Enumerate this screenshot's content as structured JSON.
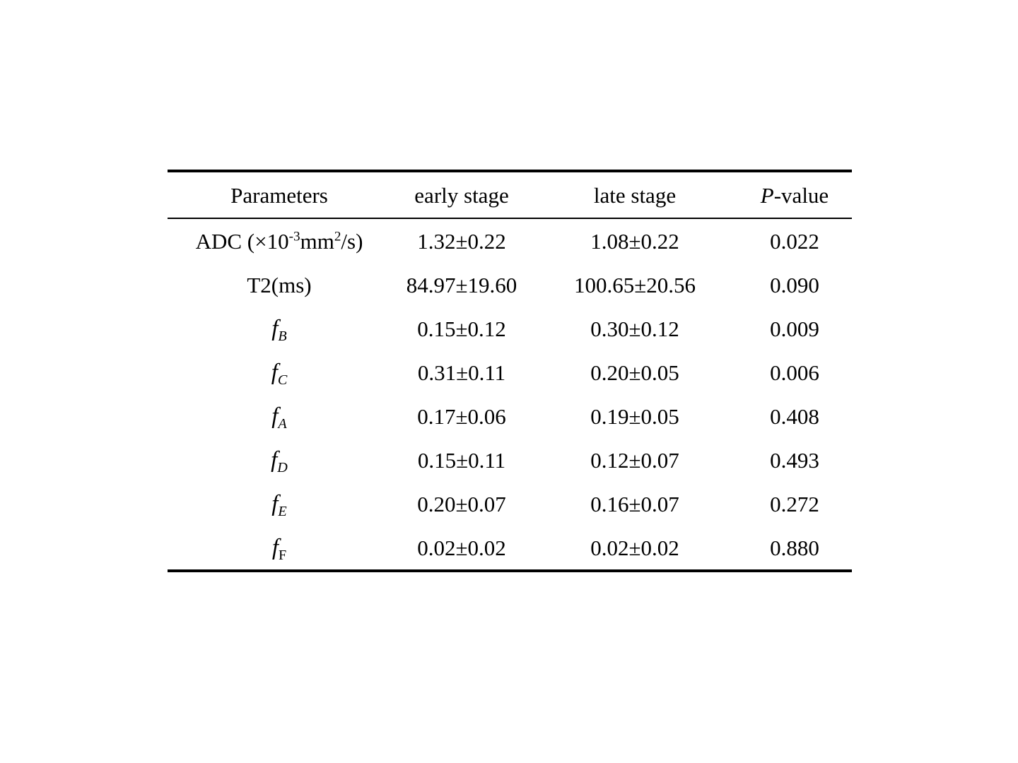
{
  "page": {
    "background": "#ffffff",
    "text_color": "#000000"
  },
  "table": {
    "headers": {
      "parameters": "Parameters",
      "early": "early stage",
      "late": "late stage",
      "p_italic": "P",
      "p_rest": "-value"
    },
    "rows": [
      {
        "param_pre": "ADC (×10",
        "param_sup1": "-3",
        "param_mid": "mm",
        "param_sup2": "2",
        "param_post": "/s)",
        "early": "1.32±0.22",
        "late": "1.08±0.22",
        "p": "0.022"
      },
      {
        "param": "T2(ms)",
        "early": "84.97±19.60",
        "late": "100.65±20.56",
        "p": "0.090"
      },
      {
        "param_base": "f",
        "param_sub": "B",
        "early": "0.15±0.12",
        "late": "0.30±0.12",
        "p": "0.009"
      },
      {
        "param_base": "f",
        "param_sub": "C",
        "early": "0.31±0.11",
        "late": "0.20±0.05",
        "p": "0.006"
      },
      {
        "param_base": "f",
        "param_sub": "A",
        "early": "0.17±0.06",
        "late": "0.19±0.05",
        "p": "0.408"
      },
      {
        "param_base": "f",
        "param_sub": "D",
        "early": "0.15±0.11",
        "late": "0.12±0.07",
        "p": "0.493"
      },
      {
        "param_base": "f",
        "param_sub": "E",
        "early": "0.20±0.07",
        "late": "0.16±0.07",
        "p": "0.272"
      },
      {
        "param_base": "f",
        "param_sub": "F",
        "early": "0.02±0.02",
        "late": "0.02±0.02",
        "p": "0.880"
      }
    ]
  }
}
